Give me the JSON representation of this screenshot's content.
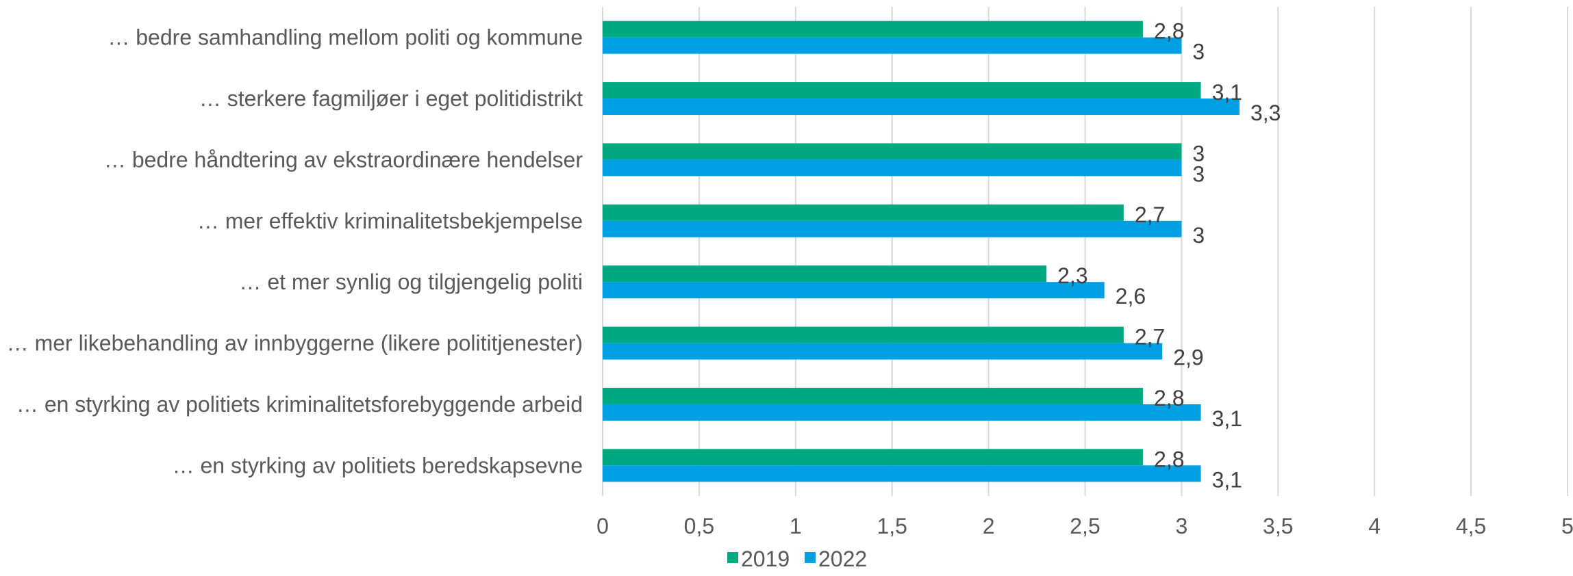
{
  "chart_data": {
    "type": "bar",
    "orientation": "horizontal",
    "categories": [
      "… bedre samhandling mellom politi og kommune",
      "… sterkere fagmiljøer i eget politidistrikt",
      "… bedre håndtering av ekstraordinære hendelser",
      "… mer effektiv kriminalitetsbekjempelse",
      "… et mer synlig og tilgjengelig politi",
      "… mer likebehandling av innbyggerne (likere polititjenester)",
      "… en styrking av politiets kriminalitetsforebyggende arbeid",
      "… en styrking av politiets beredskapsevne"
    ],
    "series": [
      {
        "name": "2019",
        "color": "#00a97f",
        "values": [
          2.8,
          3.1,
          3,
          2.7,
          2.3,
          2.7,
          2.8,
          2.8
        ],
        "labels": [
          "2,8",
          "3,1",
          "3",
          "2,7",
          "2,3",
          "2,7",
          "2,8",
          "2,8"
        ]
      },
      {
        "name": "2022",
        "color": "#009fe3",
        "values": [
          3,
          3.3,
          3,
          3,
          2.6,
          2.9,
          3.1,
          3.1
        ],
        "labels": [
          "3",
          "3,3",
          "3",
          "3",
          "2,6",
          "2,9",
          "3,1",
          "3,1"
        ]
      }
    ],
    "xlim": [
      0,
      5
    ],
    "x_ticks": [
      0,
      0.5,
      1,
      1.5,
      2,
      2.5,
      3,
      3.5,
      4,
      4.5,
      5
    ],
    "x_tick_labels": [
      "0",
      "0,5",
      "1",
      "1,5",
      "2",
      "2,5",
      "3",
      "3,5",
      "4",
      "4,5",
      "5"
    ],
    "grid": true,
    "legend_position": "bottom",
    "title": "",
    "xlabel": "",
    "ylabel": ""
  }
}
